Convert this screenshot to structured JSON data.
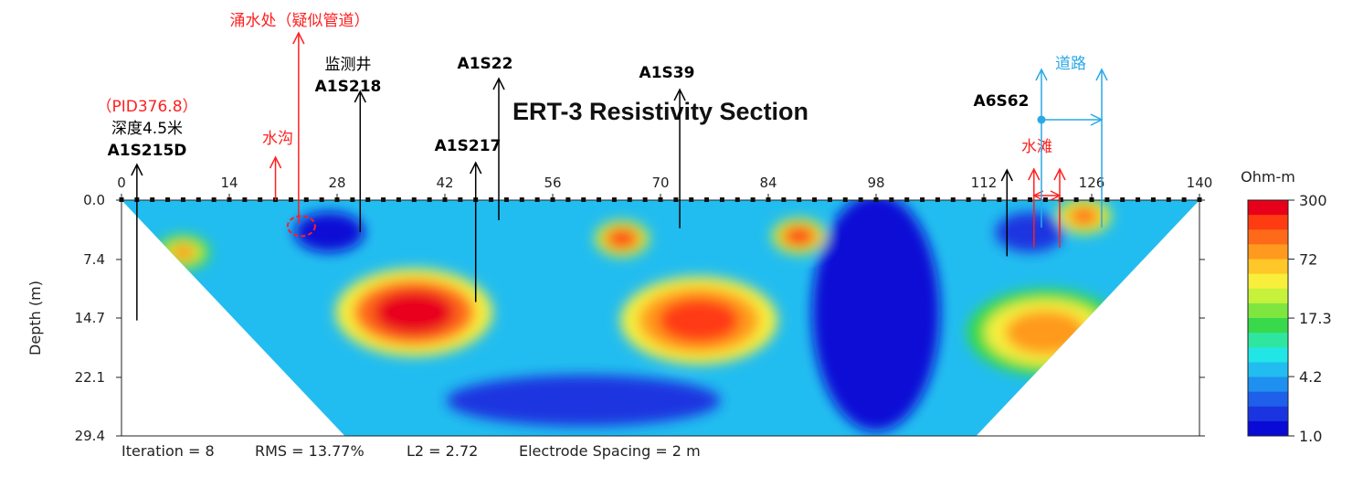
{
  "chart_data": {
    "type": "heatmap",
    "title": "ERT-3 Resistivity Section",
    "xlabel": "",
    "ylabel": "Depth (m)",
    "x_ticks": [
      "0",
      "14",
      "28",
      "42",
      "56",
      "70",
      "84",
      "98",
      "112",
      "126",
      "140"
    ],
    "y_ticks": [
      "0.0",
      "7.4",
      "14.7",
      "22.1",
      "29.4"
    ],
    "xlim": [
      0,
      140
    ],
    "ylim": [
      0,
      29.4
    ],
    "colorbar": {
      "title": "Ohm-m",
      "tick_labels": [
        "300",
        "72",
        "17.3",
        "4.2",
        "1.0"
      ],
      "tick_values": [
        300,
        72,
        17.3,
        4.2,
        1.0
      ],
      "scale": "log",
      "colors": [
        "#e8001a",
        "#ff3b12",
        "#ff6a1a",
        "#ff9a1e",
        "#ffc728",
        "#f7ef3c",
        "#c6f23c",
        "#7fe640",
        "#38d94a",
        "#2ee6a0",
        "#22e6e6",
        "#22bdf0",
        "#1e90f0",
        "#1e60ea",
        "#1a35e0",
        "#0a0ad6"
      ]
    },
    "footer": {
      "iteration": "Iteration = 8",
      "rms": "RMS = 13.77%",
      "l2": "L2 = 2.72",
      "spacing": "Electrode Spacing = 2 m"
    },
    "anomalies": [
      {
        "x": 38,
        "depth": 14.0,
        "value": 300
      },
      {
        "x": 75,
        "depth": 15.0,
        "value": 220
      },
      {
        "x": 120,
        "depth": 16.5,
        "value": 95
      },
      {
        "x": 88,
        "depth": 4.5,
        "value": 200
      },
      {
        "x": 65,
        "depth": 4.8,
        "value": 180
      },
      {
        "x": 125,
        "depth": 2.0,
        "value": 160
      },
      {
        "x": 8,
        "depth": 6.5,
        "value": 80
      }
    ],
    "low_zones": [
      {
        "x": 98,
        "depth": 14.0,
        "value": 1.0
      },
      {
        "x": 27,
        "depth": 4.0,
        "value": 1.2
      },
      {
        "x": 118,
        "depth": 4.0,
        "value": 1.3
      },
      {
        "x": 60,
        "depth": 25.0,
        "value": 1.5
      }
    ]
  },
  "annotations": [
    {
      "id": "A1S215D",
      "x": 2,
      "depth_bottom": 15.0,
      "color": "#000000",
      "lines": [
        {
          "text": "（PID376.8）",
          "color": "#ff2020",
          "weight": "normal"
        },
        {
          "text": "深度4.5米",
          "color": "#000000",
          "weight": "normal"
        },
        {
          "text": "A1S215D",
          "color": "#000000",
          "weight": "bold"
        }
      ]
    },
    {
      "id": "water-ditch",
      "x": 20,
      "depth_bottom": 0,
      "color": "#ff2020",
      "lines": [
        {
          "text": "水沟",
          "color": "#ff2020",
          "weight": "normal"
        }
      ]
    },
    {
      "id": "gushing-water",
      "x": 23,
      "depth_bottom": 3.0,
      "color": "#ff2020",
      "lines": [
        {
          "text": "涌水处（疑似管道）",
          "color": "#ff2020",
          "weight": "normal"
        }
      ]
    },
    {
      "id": "A1S218",
      "x": 31,
      "depth_bottom": 4.0,
      "color": "#000000",
      "lines": [
        {
          "text": "监测井",
          "color": "#000000",
          "weight": "normal"
        },
        {
          "text": "A1S218",
          "color": "#000000",
          "weight": "bold"
        }
      ]
    },
    {
      "id": "A1S217",
      "x": 46,
      "depth_bottom": 12.7,
      "color": "#000000",
      "lines": [
        {
          "text": "A1S217",
          "color": "#000000",
          "weight": "bold"
        }
      ]
    },
    {
      "id": "A1S22",
      "x": 49,
      "depth_bottom": 2.5,
      "color": "#000000",
      "lines": [
        {
          "text": "A1S22",
          "color": "#000000",
          "weight": "bold"
        }
      ]
    },
    {
      "id": "A1S39",
      "x": 72.5,
      "depth_bottom": 3.5,
      "color": "#000000",
      "lines": [
        {
          "text": "A1S39",
          "color": "#000000",
          "weight": "bold"
        }
      ]
    },
    {
      "id": "A6S62",
      "x": 115,
      "depth_bottom": 7.0,
      "color": "#000000",
      "lines": [
        {
          "text": "A6S62",
          "color": "#000000",
          "weight": "bold"
        }
      ]
    },
    {
      "id": "water-beach",
      "x": 118.5,
      "color": "#ff2020",
      "lines": [
        {
          "text": "水滩",
          "color": "#ff2020",
          "weight": "normal"
        }
      ]
    },
    {
      "id": "road",
      "x": 125,
      "color": "#29a9e6",
      "lines": [
        {
          "text": "道路",
          "color": "#29a9e6",
          "weight": "normal"
        }
      ]
    }
  ]
}
